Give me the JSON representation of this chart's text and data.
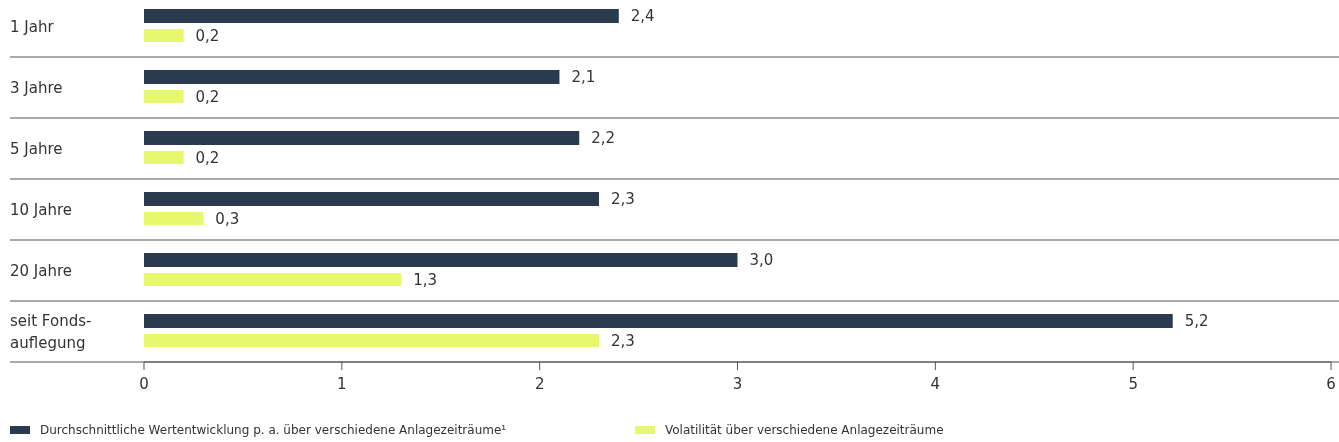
{
  "chart_data": {
    "type": "bar",
    "orientation": "horizontal",
    "categories": [
      "1 Jahr",
      "3 Jahre",
      "5 Jahre",
      "10 Jahre",
      "20 Jahre",
      "seit Fonds-\nauflegung"
    ],
    "series": [
      {
        "name": "Durchschnittliche Wertentwicklung p. a. über verschiedene Anlagezeiträume¹",
        "color": "#2b3a4f",
        "values": [
          2.4,
          2.1,
          2.2,
          2.3,
          3.0,
          5.2
        ],
        "value_labels": [
          "2,4",
          "2,1",
          "2,2",
          "2,3",
          "3,0",
          "5,2"
        ]
      },
      {
        "name": "Volatilität über verschiedene Anlagezeiträume",
        "color": "#e8f86e",
        "values": [
          0.2,
          0.2,
          0.2,
          0.3,
          1.3,
          2.3
        ],
        "value_labels": [
          "0,2",
          "0,2",
          "0,2",
          "0,3",
          "1,3",
          "2,3"
        ]
      }
    ],
    "xlim": [
      0,
      6
    ],
    "xticks": [
      0,
      1,
      2,
      3,
      4,
      5,
      6
    ],
    "grid": false,
    "legend": "bottom"
  }
}
